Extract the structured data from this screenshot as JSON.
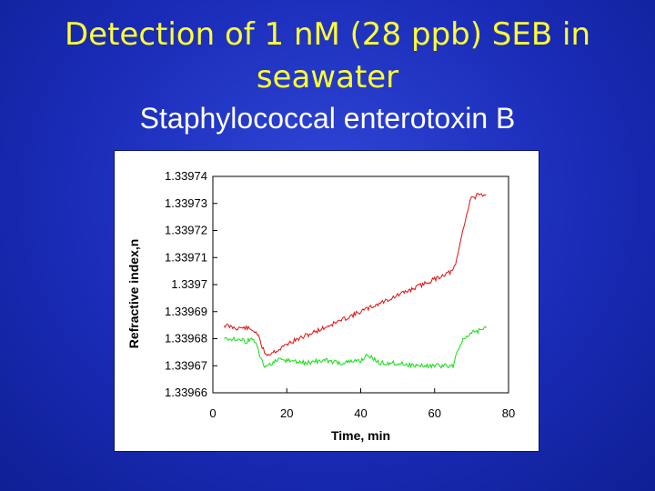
{
  "slide": {
    "title_line1": "Detection of 1 nM (28 ppb) SEB in",
    "title_line2": "seawater",
    "subtitle": "Staphylococcal enterotoxin B"
  },
  "colors": {
    "title": "#ffff33",
    "subtitle": "#ffffff",
    "series_1": "#dd1111",
    "series_2": "#11dd11"
  },
  "chart_data": {
    "type": "line",
    "xlabel": "Time, min",
    "ylabel": "Refractive index,n",
    "xlim": [
      0,
      80
    ],
    "ylim": [
      1.33966,
      1.33974
    ],
    "x_ticks": [
      "0",
      "20",
      "40",
      "60",
      "80"
    ],
    "y_ticks": [
      "1.33974",
      "1.33973",
      "1.33972",
      "1.33971",
      "1.3397",
      "1.33969",
      "1.33968",
      "1.33967",
      "1.33966"
    ],
    "y_tick_values": [
      1.33974,
      1.33973,
      1.33972,
      1.33971,
      1.3397,
      1.33969,
      1.33968,
      1.33967,
      1.33966
    ],
    "grid": false,
    "series": [
      {
        "color": "#dd1111",
        "x": [
          3,
          6,
          9,
          11,
          12,
          13,
          14,
          15,
          16,
          18,
          20,
          25,
          30,
          35,
          40,
          45,
          50,
          55,
          60,
          63,
          65,
          66,
          67,
          68,
          69,
          70,
          71,
          72,
          73,
          74
        ],
        "y": [
          1.339685,
          1.339684,
          1.339684,
          1.339683,
          1.339682,
          1.339678,
          1.339675,
          1.339674,
          1.339675,
          1.339676,
          1.339678,
          1.339681,
          1.339684,
          1.339687,
          1.33969,
          1.339693,
          1.339696,
          1.339699,
          1.339702,
          1.339704,
          1.339705,
          1.339709,
          1.339716,
          1.339722,
          1.339728,
          1.339733,
          1.339732,
          1.339734,
          1.339732,
          1.339733
        ]
      },
      {
        "color": "#11dd11",
        "x": [
          3,
          6,
          9,
          11,
          12,
          13,
          14,
          15,
          16,
          18,
          20,
          25,
          30,
          35,
          40,
          42,
          45,
          50,
          55,
          60,
          65,
          66,
          67,
          68,
          69,
          70,
          72,
          74
        ],
        "y": [
          1.33968,
          1.33968,
          1.339679,
          1.33968,
          1.339677,
          1.339672,
          1.33967,
          1.33967,
          1.339671,
          1.339672,
          1.339672,
          1.339671,
          1.339672,
          1.339671,
          1.339672,
          1.339674,
          1.339671,
          1.339671,
          1.33967,
          1.33967,
          1.33967,
          1.339675,
          1.339678,
          1.33968,
          1.339681,
          1.339682,
          1.339683,
          1.339684
        ]
      }
    ]
  }
}
